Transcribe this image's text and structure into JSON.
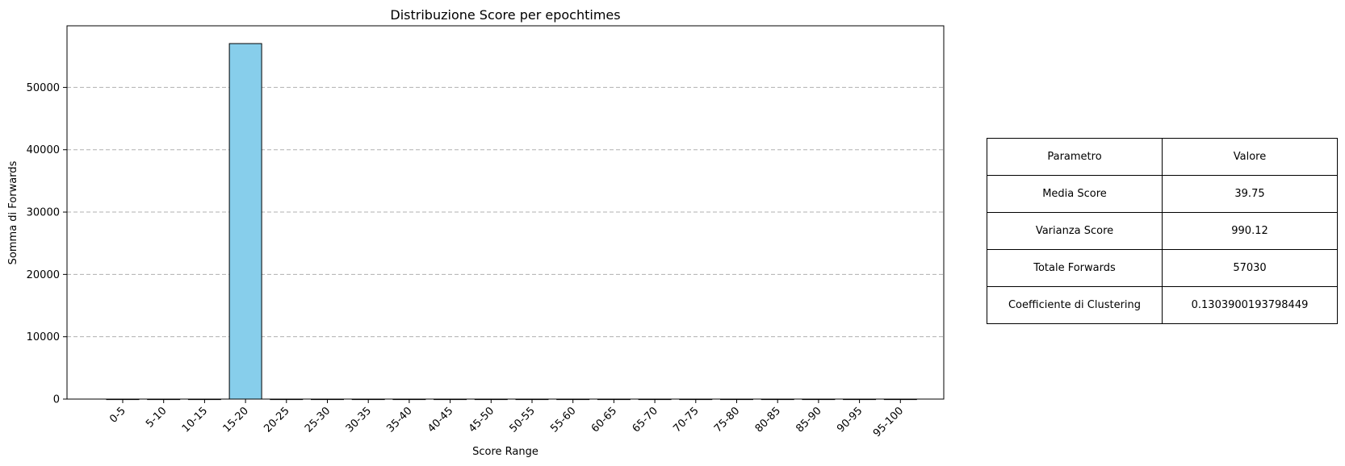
{
  "chart_data": {
    "type": "bar",
    "title": "Distribuzione Score per epochtimes",
    "xlabel": "Score Range",
    "ylabel": "Somma di Forwards",
    "categories": [
      "0-5",
      "5-10",
      "10-15",
      "15-20",
      "20-25",
      "25-30",
      "30-35",
      "35-40",
      "40-45",
      "45-50",
      "50-55",
      "55-60",
      "60-65",
      "65-70",
      "70-75",
      "75-80",
      "80-85",
      "85-90",
      "90-95",
      "95-100"
    ],
    "values": [
      0,
      0,
      0,
      57030,
      0,
      0,
      0,
      0,
      0,
      0,
      0,
      0,
      0,
      0,
      0,
      0,
      0,
      0,
      0,
      0
    ],
    "ylim": [
      0,
      59882
    ],
    "yticks": [
      0,
      10000,
      20000,
      30000,
      40000,
      50000
    ],
    "grid": "y-dashed",
    "bar_color": "#87ceeb",
    "edge_color": "#000000"
  },
  "table": {
    "header": [
      "Parametro",
      "Valore"
    ],
    "rows": [
      [
        "Media Score",
        "39.75"
      ],
      [
        "Varianza Score",
        "990.12"
      ],
      [
        "Totale Forwards",
        "57030"
      ],
      [
        "Coefficiente di Clustering",
        "0.1303900193798449"
      ]
    ]
  }
}
